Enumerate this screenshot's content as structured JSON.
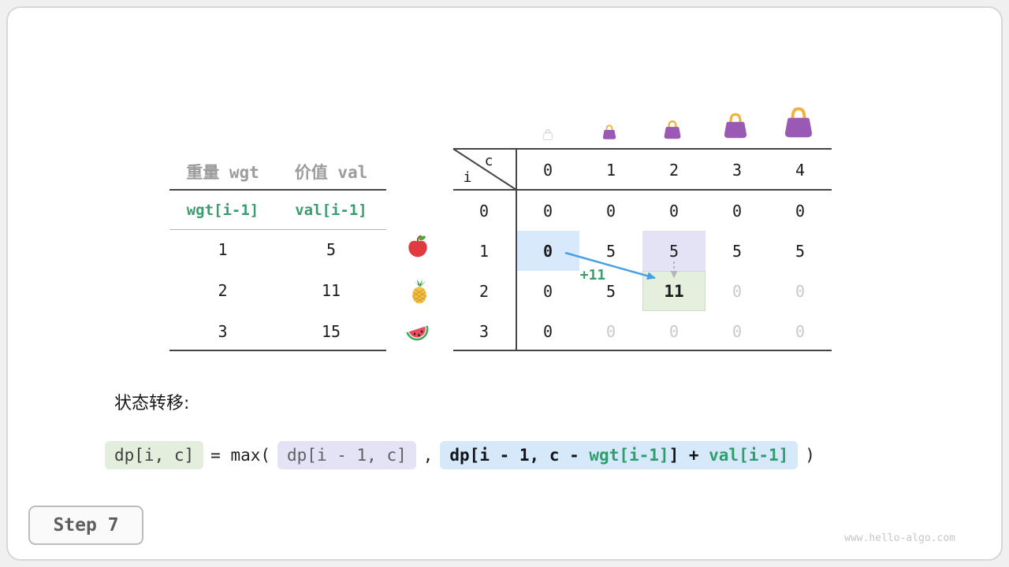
{
  "page": {
    "step_label": "Step 7",
    "watermark": "www.hello-algo.com",
    "caption": "状态转移:"
  },
  "items_table": {
    "col_headers": [
      "重量 wgt",
      "价值 val"
    ],
    "formula_row": {
      "wgt": "wgt[i-1]",
      "val": "val[i-1]"
    },
    "rows": [
      {
        "icon": "apple-icon",
        "wgt": "1",
        "val": "5"
      },
      {
        "icon": "pineapple-icon",
        "wgt": "2",
        "val": "11"
      },
      {
        "icon": "watermelon-icon",
        "wgt": "3",
        "val": "15"
      }
    ]
  },
  "dp_table": {
    "corner": {
      "col_var": "c",
      "row_var": "i"
    },
    "col_headers": [
      "0",
      "1",
      "2",
      "3",
      "4"
    ],
    "row_headers": [
      "0",
      "1",
      "2",
      "3"
    ],
    "rows": [
      [
        "0",
        "0",
        "0",
        "0",
        "0"
      ],
      [
        "0",
        "5",
        "5",
        "5",
        "5"
      ],
      [
        "0",
        "5",
        "11",
        "0",
        "0"
      ],
      [
        "0",
        "0",
        "0",
        "0",
        "0"
      ]
    ],
    "cell_styles": [
      [
        "",
        "",
        "",
        "",
        ""
      ],
      [
        "hl-blue bold",
        "",
        "hl-lavender",
        "",
        ""
      ],
      [
        "",
        "",
        "hl-green bold",
        "dim",
        "dim"
      ],
      [
        "",
        "dim",
        "dim",
        "dim",
        "dim"
      ]
    ],
    "capacity_icons": [
      "empty-bag-icon",
      "bag-icon",
      "bag-icon",
      "bag-icon",
      "bag-icon"
    ]
  },
  "annotation": {
    "add_label": "+11"
  },
  "transition": {
    "lhs": "dp[i, c]",
    "operator": "= max(",
    "option1": "dp[i - 1, c]",
    "separator": ",",
    "option2_pre": "dp[i - 1, c - ",
    "option2_wgt": "wgt[i-1]",
    "option2_mid": "] + ",
    "option2_val": "val[i-1]",
    "closing": ")"
  },
  "colors": {
    "highlight_blue": "#d7e9fa",
    "highlight_lavender": "#e4e3f6",
    "highlight_green": "#e4efde",
    "accent_green": "#2f9e6b",
    "arrow_blue": "#47a1e6",
    "dim_value": "#c9c9c9",
    "bag_purple": "#9b59b6",
    "bag_handle_gold": "#f2b13d"
  }
}
